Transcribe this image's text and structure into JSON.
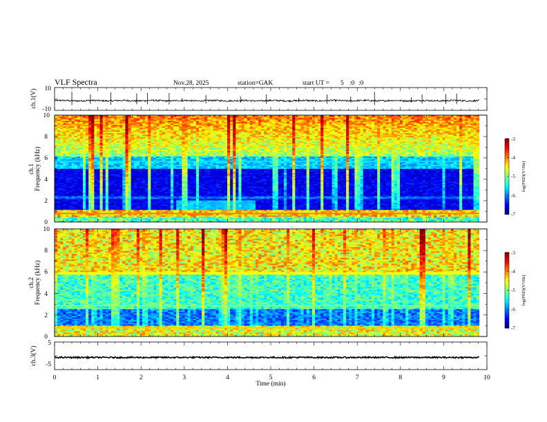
{
  "header": {
    "title": "VLF  Spectra",
    "date": "Nov.28, 2025",
    "station": "station=GAK",
    "start_label": "start  UT  =",
    "start_h": "5",
    "start_m": ":0",
    "start_s": ":0"
  },
  "colors": {
    "jet": [
      "#00007f",
      "#0000ff",
      "#007fff",
      "#00ffff",
      "#7fff7f",
      "#ffff00",
      "#ff7f00",
      "#ff0000",
      "#7f0000"
    ],
    "frame": "#000000",
    "background": "#ffffff"
  },
  "chart_data": [
    {
      "type": "line",
      "name": "ch1-waveform",
      "ylabel": "ch.1(V)",
      "ylim": [
        -10,
        10
      ],
      "yticks": [
        "10",
        "-10"
      ],
      "baseline": -1.5,
      "noise_amplitude": 1.2,
      "spike_times_min": [
        0.4,
        0.83,
        1.3,
        1.9,
        2.15,
        2.65,
        2.95,
        3.5,
        4.3,
        4.9,
        5.65,
        6.3,
        6.85,
        7.4,
        8.25,
        8.5,
        9.05,
        9.3
      ],
      "xlim": [
        0,
        10
      ],
      "data_end_min": 9.82
    },
    {
      "type": "heatmap",
      "name": "ch1-spectrogram",
      "ylabel": "Frequency (kHz)",
      "channel_label": "ch.1",
      "ylim": [
        0,
        10
      ],
      "yticks": [
        "0",
        "2",
        "4",
        "6",
        "8",
        "10"
      ],
      "xlim": [
        0,
        10
      ],
      "data_end_min": 9.82,
      "colorbar": {
        "label": "log(PSD)(V²/Hz)",
        "ticks": [
          "-3",
          "-4",
          "-5",
          "-6",
          "-7"
        ],
        "range": [
          -7,
          -3
        ]
      }
    },
    {
      "type": "heatmap",
      "name": "ch2-spectrogram",
      "ylabel": "Frequency (kHz)",
      "channel_label": "ch.2",
      "ylim": [
        0,
        10
      ],
      "yticks": [
        "0",
        "2",
        "4",
        "6",
        "8",
        "10"
      ],
      "xlim": [
        0,
        10
      ],
      "data_end_min": 9.82,
      "colorbar": {
        "label": "log(PSD)(V²/Hz)",
        "ticks": [
          "-3",
          "-4",
          "-5",
          "-6",
          "-7"
        ],
        "range": [
          -7,
          -3
        ]
      }
    },
    {
      "type": "line",
      "name": "ch3-waveform",
      "ylabel": "ch.3(V)",
      "ylim": [
        -5,
        5
      ],
      "yticks": [
        "5",
        "-5"
      ],
      "baseline": -0.6,
      "noise_amplitude": 0.25,
      "xlim": [
        0,
        10
      ],
      "data_end_min": 9.82
    }
  ],
  "xaxis": {
    "label": "Time  (min)",
    "ticks": [
      "0",
      "1",
      "2",
      "3",
      "4",
      "5",
      "6",
      "7",
      "8",
      "9",
      "10"
    ]
  }
}
